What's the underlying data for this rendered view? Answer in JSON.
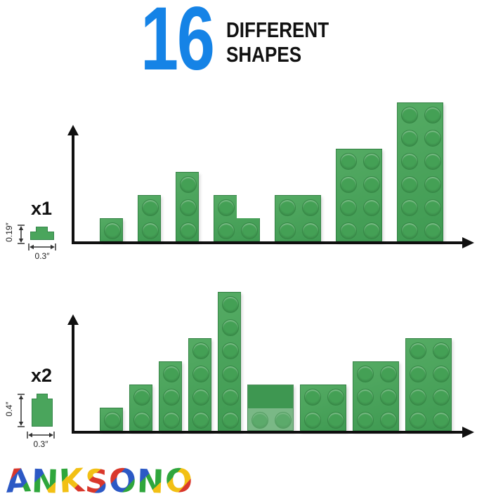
{
  "title": {
    "count": "16",
    "line1": "DIFFERENT",
    "line2": "SHAPES"
  },
  "colors": {
    "accent_blue": "#1583e6",
    "brick_green": "#47a158",
    "axis_black": "#101010"
  },
  "charts": [
    {
      "multiplier": "x1",
      "unit_brick": {
        "height_label": "0.19″",
        "width_label": "0.3″"
      },
      "bricks": [
        {
          "label": "1x1",
          "shape": "rect",
          "cols": 1,
          "rows": 1
        },
        {
          "label": "1x2",
          "shape": "rect",
          "cols": 1,
          "rows": 2
        },
        {
          "label": "1x3",
          "shape": "rect",
          "cols": 1,
          "rows": 3
        },
        {
          "label": "2x2-corner",
          "shape": "corner",
          "cols": 2,
          "rows": 2
        },
        {
          "label": "2x2",
          "shape": "rect",
          "cols": 2,
          "rows": 2
        },
        {
          "label": "2x4",
          "shape": "rect",
          "cols": 2,
          "rows": 4
        },
        {
          "label": "2x6",
          "shape": "rect",
          "cols": 2,
          "rows": 6
        }
      ]
    },
    {
      "multiplier": "x2",
      "unit_brick": {
        "height_label": "0.4″",
        "width_label": "0.3″"
      },
      "bricks": [
        {
          "label": "1x1",
          "shape": "rect",
          "cols": 1,
          "rows": 1
        },
        {
          "label": "1x2",
          "shape": "rect",
          "cols": 1,
          "rows": 2
        },
        {
          "label": "1x3",
          "shape": "rect",
          "cols": 1,
          "rows": 3
        },
        {
          "label": "1x4",
          "shape": "rect",
          "cols": 1,
          "rows": 4
        },
        {
          "label": "1x6",
          "shape": "rect",
          "cols": 1,
          "rows": 6
        },
        {
          "label": "2x2-slope",
          "shape": "slope",
          "cols": 2,
          "rows": 2
        },
        {
          "label": "2x2",
          "shape": "rect",
          "cols": 2,
          "rows": 2
        },
        {
          "label": "2x3",
          "shape": "rect",
          "cols": 2,
          "rows": 3
        },
        {
          "label": "2x4",
          "shape": "rect",
          "cols": 2,
          "rows": 4
        }
      ]
    }
  ],
  "logo": {
    "text": "ANKSONO",
    "palette": [
      "#d9372b",
      "#2c59c5",
      "#2fa63c",
      "#f2c014"
    ]
  }
}
